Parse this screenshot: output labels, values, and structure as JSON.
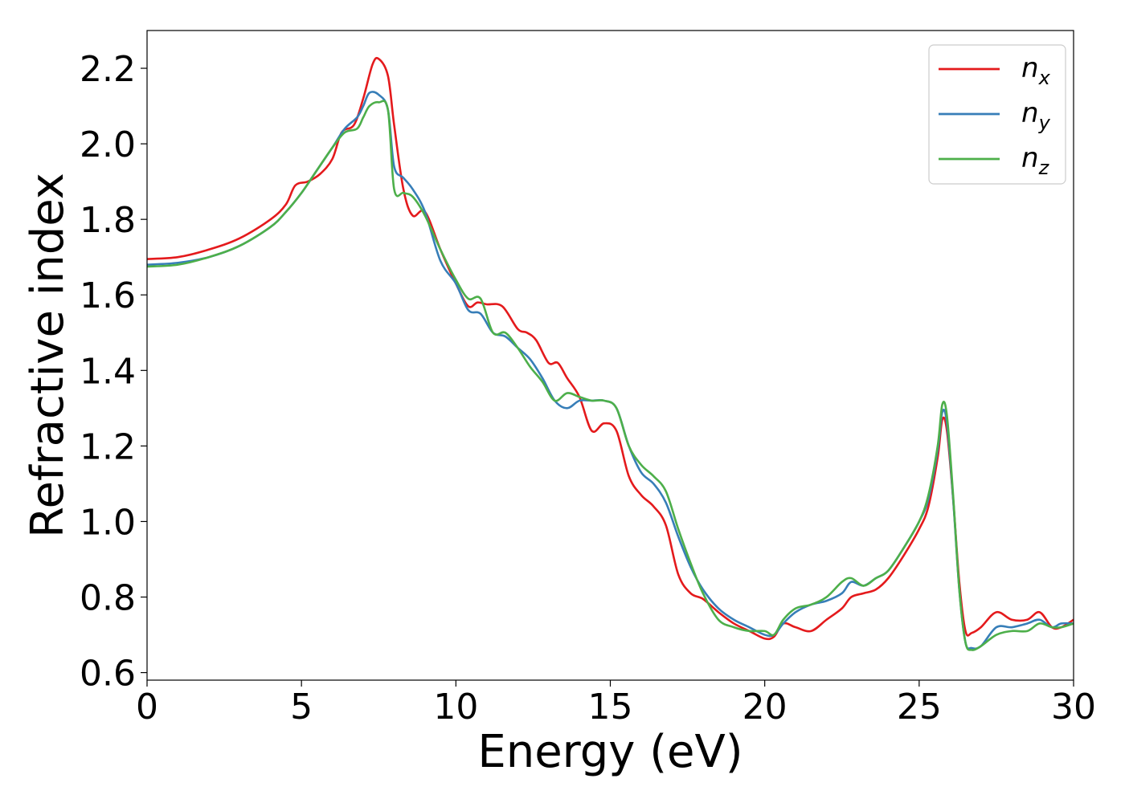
{
  "chart_data": {
    "type": "line",
    "xlabel": "Energy (eV)",
    "ylabel": "Refractive index",
    "xlim": [
      0,
      30
    ],
    "ylim": [
      0.58,
      2.3
    ],
    "xticks": [
      0,
      5,
      10,
      15,
      20,
      25,
      30
    ],
    "xtick_labels": [
      "0",
      "5",
      "10",
      "15",
      "20",
      "25",
      "30"
    ],
    "yticks": [
      0.6,
      0.8,
      1.0,
      1.2,
      1.4,
      1.6,
      1.8,
      2.0,
      2.2
    ],
    "ytick_labels": [
      "0.6",
      "0.8",
      "1.0",
      "1.2",
      "1.4",
      "1.6",
      "1.8",
      "2.0",
      "2.2"
    ],
    "grid": false,
    "legend_position": "top-right",
    "series": [
      {
        "name": "n",
        "subscript": "x",
        "color": "#e41a1c",
        "x": [
          0,
          1,
          2,
          3,
          4,
          4.5,
          4.8,
          5.2,
          5.6,
          6.0,
          6.3,
          6.7,
          7.0,
          7.3,
          7.5,
          7.8,
          8.0,
          8.3,
          8.6,
          9.0,
          9.5,
          10.0,
          10.4,
          10.7,
          11.0,
          11.5,
          12.0,
          12.3,
          12.6,
          13.0,
          13.3,
          13.6,
          14.0,
          14.4,
          14.8,
          15.2,
          15.6,
          16.0,
          16.4,
          16.8,
          17.2,
          17.6,
          18.0,
          18.5,
          19.0,
          19.5,
          20.0,
          20.3,
          20.6,
          21.0,
          21.5,
          22.0,
          22.5,
          22.8,
          23.2,
          23.6,
          24.0,
          24.5,
          25.0,
          25.3,
          25.6,
          25.75,
          25.9,
          26.1,
          26.3,
          26.5,
          26.7,
          27.0,
          27.5,
          28.0,
          28.5,
          28.9,
          29.3,
          29.6,
          30.0
        ],
        "y": [
          1.695,
          1.7,
          1.72,
          1.75,
          1.8,
          1.84,
          1.89,
          1.9,
          1.92,
          1.96,
          2.03,
          2.05,
          2.12,
          2.21,
          2.225,
          2.18,
          2.05,
          1.88,
          1.81,
          1.82,
          1.72,
          1.63,
          1.57,
          1.58,
          1.575,
          1.57,
          1.51,
          1.5,
          1.48,
          1.42,
          1.42,
          1.38,
          1.33,
          1.24,
          1.26,
          1.24,
          1.12,
          1.07,
          1.04,
          0.99,
          0.86,
          0.81,
          0.795,
          0.76,
          0.73,
          0.71,
          0.69,
          0.695,
          0.73,
          0.72,
          0.71,
          0.74,
          0.77,
          0.8,
          0.81,
          0.82,
          0.85,
          0.91,
          0.98,
          1.04,
          1.17,
          1.27,
          1.24,
          1.06,
          0.84,
          0.71,
          0.705,
          0.72,
          0.76,
          0.74,
          0.74,
          0.76,
          0.72,
          0.72,
          0.74
        ]
      },
      {
        "name": "n",
        "subscript": "y",
        "color": "#377eb8",
        "x": [
          0,
          1,
          2,
          3,
          4,
          4.5,
          5.0,
          5.5,
          6.0,
          6.4,
          6.8,
          7.0,
          7.2,
          7.5,
          7.8,
          8.0,
          8.3,
          8.6,
          9.0,
          9.5,
          10.0,
          10.4,
          10.8,
          11.2,
          11.6,
          12.0,
          12.4,
          12.8,
          13.2,
          13.6,
          14.0,
          14.4,
          14.8,
          15.2,
          15.6,
          16.0,
          16.4,
          16.8,
          17.2,
          17.6,
          18.0,
          18.5,
          19.0,
          19.5,
          20.0,
          20.3,
          20.6,
          21.0,
          21.5,
          22.0,
          22.5,
          22.8,
          23.2,
          23.6,
          24.0,
          24.5,
          25.0,
          25.3,
          25.6,
          25.75,
          25.9,
          26.1,
          26.3,
          26.5,
          26.7,
          27.0,
          27.5,
          28.0,
          28.5,
          28.9,
          29.3,
          29.6,
          30.0
        ],
        "y": [
          1.68,
          1.685,
          1.7,
          1.73,
          1.78,
          1.82,
          1.87,
          1.93,
          1.99,
          2.04,
          2.07,
          2.1,
          2.135,
          2.13,
          2.09,
          1.94,
          1.91,
          1.88,
          1.82,
          1.69,
          1.63,
          1.56,
          1.55,
          1.5,
          1.49,
          1.46,
          1.43,
          1.38,
          1.32,
          1.3,
          1.32,
          1.32,
          1.32,
          1.3,
          1.2,
          1.13,
          1.1,
          1.05,
          0.96,
          0.88,
          0.82,
          0.77,
          0.74,
          0.72,
          0.7,
          0.7,
          0.73,
          0.76,
          0.78,
          0.79,
          0.81,
          0.84,
          0.83,
          0.85,
          0.87,
          0.93,
          1.0,
          1.06,
          1.19,
          1.29,
          1.26,
          1.06,
          0.82,
          0.68,
          0.665,
          0.67,
          0.72,
          0.72,
          0.73,
          0.74,
          0.72,
          0.73,
          0.73
        ]
      },
      {
        "name": "n",
        "subscript": "z",
        "color": "#4daf4a",
        "x": [
          0,
          1,
          2,
          3,
          4,
          4.5,
          5.0,
          5.5,
          6.0,
          6.4,
          6.8,
          7.0,
          7.2,
          7.5,
          7.8,
          8.0,
          8.3,
          8.6,
          9.0,
          9.5,
          10.0,
          10.4,
          10.8,
          11.2,
          11.6,
          12.0,
          12.4,
          12.8,
          13.2,
          13.6,
          14.0,
          14.4,
          14.8,
          15.2,
          15.6,
          16.0,
          16.4,
          16.8,
          17.2,
          17.6,
          18.0,
          18.5,
          19.0,
          19.5,
          20.0,
          20.3,
          20.6,
          21.0,
          21.5,
          22.0,
          22.5,
          22.8,
          23.2,
          23.6,
          24.0,
          24.5,
          25.0,
          25.3,
          25.6,
          25.75,
          25.9,
          26.1,
          26.3,
          26.5,
          26.7,
          27.0,
          27.5,
          28.0,
          28.5,
          28.9,
          29.3,
          29.6,
          30.0
        ],
        "y": [
          1.675,
          1.68,
          1.7,
          1.73,
          1.78,
          1.82,
          1.87,
          1.93,
          1.99,
          2.03,
          2.04,
          2.07,
          2.1,
          2.11,
          2.09,
          1.88,
          1.87,
          1.86,
          1.81,
          1.72,
          1.64,
          1.59,
          1.59,
          1.5,
          1.5,
          1.46,
          1.41,
          1.37,
          1.32,
          1.34,
          1.33,
          1.32,
          1.32,
          1.3,
          1.2,
          1.15,
          1.12,
          1.08,
          0.98,
          0.89,
          0.81,
          0.74,
          0.72,
          0.71,
          0.71,
          0.7,
          0.74,
          0.77,
          0.78,
          0.8,
          0.84,
          0.85,
          0.83,
          0.85,
          0.87,
          0.93,
          1.0,
          1.07,
          1.2,
          1.31,
          1.28,
          1.07,
          0.82,
          0.68,
          0.66,
          0.67,
          0.7,
          0.71,
          0.71,
          0.73,
          0.72,
          0.72,
          0.73
        ]
      }
    ]
  }
}
